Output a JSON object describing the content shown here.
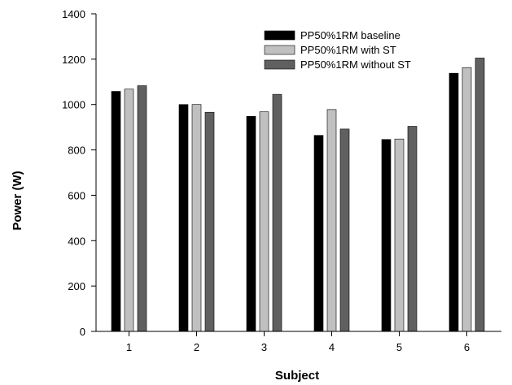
{
  "chart_data": {
    "type": "bar",
    "title": "",
    "xlabel": "Subject",
    "ylabel": "Power (W)",
    "categories": [
      "1",
      "2",
      "3",
      "4",
      "5",
      "6"
    ],
    "ylim": [
      0,
      1400
    ],
    "yticks": [
      0,
      200,
      400,
      600,
      800,
      1000,
      1200,
      1400
    ],
    "grid": false,
    "legend_position": "top-right",
    "series": [
      {
        "name": "PP50%1RM baseline",
        "color": "#000000",
        "values": [
          1058,
          1000,
          948,
          864,
          846,
          1138
        ]
      },
      {
        "name": "PP50%1RM with ST",
        "color": "#c0c0c0",
        "values": [
          1068,
          1000,
          968,
          978,
          848,
          1163
        ]
      },
      {
        "name": "PP50%1RM without ST",
        "color": "#606060",
        "values": [
          1083,
          966,
          1045,
          892,
          904,
          1205
        ]
      }
    ]
  }
}
